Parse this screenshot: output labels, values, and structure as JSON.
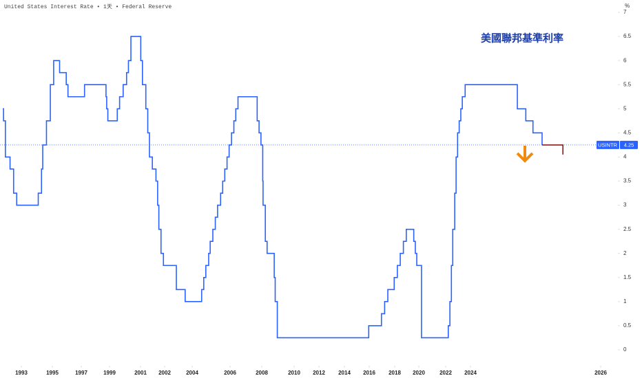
{
  "chart_data": {
    "type": "line",
    "step": true,
    "header": "United States Interest Rate • 1天 • Federal Reserve",
    "unit_label": "%",
    "title": "美國聯邦基準利率",
    "ylim": [
      0,
      7
    ],
    "yticks": [
      0,
      0.5,
      1,
      1.5,
      2,
      2.5,
      3,
      3.5,
      4,
      4.5,
      5,
      5.5,
      6,
      6.5,
      7
    ],
    "xticks": [
      1993,
      1995,
      1997,
      1999,
      2001,
      2002,
      2004,
      2006,
      2008,
      2010,
      2012,
      2014,
      2016,
      2018,
      2020,
      2022,
      2024,
      2026
    ],
    "current_symbol": "USINTR",
    "current_value": 4.25,
    "current_color": "#2962ff",
    "series": [
      {
        "color": "#2962ff",
        "x": [
          1991.8,
          1991.85,
          1991.97,
          1992.27,
          1992.5,
          1992.7,
          1994.09,
          1994.3,
          1994.38,
          1994.62,
          1994.87,
          1995.09,
          1995.5,
          1995.96,
          1996.08,
          1997.23,
          1998.75,
          1998.8,
          1998.88,
          1999.5,
          1999.65,
          1999.88,
          2000.1,
          2000.22,
          2000.38,
          2001.01,
          2001.08,
          2001.22,
          2001.3,
          2001.37,
          2001.49,
          2001.64,
          2001.71,
          2001.76,
          2001.85,
          2001.95,
          2002.85,
          2003.49,
          2004.5,
          2004.61,
          2004.72,
          2004.87,
          2004.95,
          2005.09,
          2005.22,
          2005.34,
          2005.5,
          2005.61,
          2005.72,
          2005.84,
          2005.95,
          2006.09,
          2006.24,
          2006.36,
          2006.5,
          2007.71,
          2007.83,
          2007.95,
          2008.06,
          2008.08,
          2008.22,
          2008.33,
          2008.77,
          2008.83,
          2008.96,
          2015.96,
          2016.96,
          2017.21,
          2017.46,
          2017.96,
          2018.22,
          2018.46,
          2018.72,
          2018.96,
          2019.58,
          2019.71,
          2019.83,
          2020.2,
          2022.21,
          2022.34,
          2022.46,
          2022.57,
          2022.73,
          2022.84,
          2022.96,
          2023.09,
          2023.22,
          2023.34,
          2023.57,
          2024.72,
          2024.85,
          2024.96,
          2025.1
        ],
        "values": [
          5,
          4.75,
          4,
          3.75,
          3.25,
          3,
          3.25,
          3.75,
          4.25,
          4.75,
          5.5,
          6,
          5.75,
          5.5,
          5.25,
          5.5,
          5.25,
          5,
          4.75,
          5,
          5.25,
          5.5,
          5.75,
          6,
          6.5,
          6,
          5.5,
          5,
          4.5,
          4,
          3.75,
          3.5,
          3,
          2.5,
          2,
          1.75,
          1.25,
          1,
          1.25,
          1.5,
          1.75,
          2,
          2.25,
          2.5,
          2.75,
          3,
          3.25,
          3.5,
          3.75,
          4,
          4.25,
          4.5,
          4.75,
          5,
          5.25,
          4.75,
          4.5,
          4.25,
          3.5,
          3,
          2.25,
          2,
          1.5,
          1,
          0.25,
          0.5,
          0.75,
          1,
          1.25,
          1.5,
          1.75,
          2,
          2.25,
          2.5,
          2.25,
          2,
          1.75,
          0.25,
          0.5,
          1,
          1.75,
          2.5,
          3.25,
          4,
          4.5,
          4.75,
          5,
          5.25,
          5.5,
          5,
          4.75,
          4.5,
          4.25
        ]
      },
      {
        "color": "#8b1a1a",
        "x": [
          2025.1,
          2025.4,
          2025.42
        ],
        "values": [
          4.25,
          4.25,
          4.05
        ]
      }
    ]
  }
}
